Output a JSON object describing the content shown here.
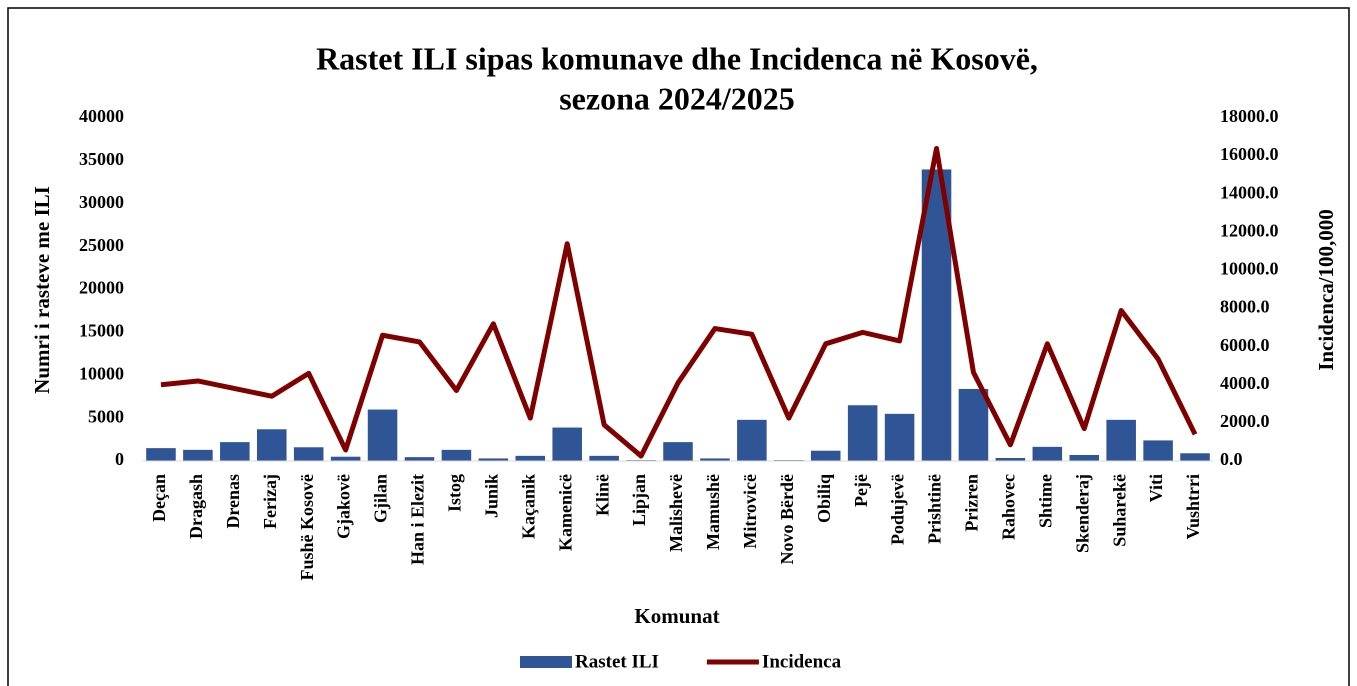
{
  "chart_data": {
    "type": "bar_line",
    "title": [
      "Rastet ILI sipas komunave dhe Incidenca në Kosovë,",
      "sezona 2024/2025"
    ],
    "x_label": "Komunat",
    "y_label": "Numri i rasteve me ILI",
    "y2_label": "Incidenca/100,000",
    "categories": [
      "Deçan",
      "Dragash",
      "Drenas",
      "Ferizaj",
      "Fushë Kosovë",
      "Gjakovë",
      "Gjilan",
      "Han i Elezit",
      "Istog",
      "Junik",
      "Kaçanik",
      "Kamenicë",
      "Klinë",
      "Lipjan",
      "Malishevë",
      "Mamushë",
      "Mitrovicë",
      "Novo Bërdë",
      "Obiliq",
      "Pejë",
      "Podujevë",
      "Prishtinë",
      "Prizren",
      "Rahovec",
      "Shtime",
      "Skenderaj",
      "Suharekë",
      "Viti",
      "Vushtrri"
    ],
    "series": [
      {
        "name": "Rastet ILI",
        "type": "bar",
        "color": "#2f5597",
        "values": [
          1500,
          1300,
          2200,
          3700,
          1600,
          500,
          6000,
          450,
          1300,
          300,
          600,
          3900,
          600,
          100,
          2200,
          300,
          4800,
          100,
          1200,
          6500,
          5500,
          34000,
          8400,
          350,
          1650,
          700,
          4800,
          2400,
          900
        ]
      },
      {
        "name": "Incidenca",
        "type": "line",
        "axis": "y2",
        "color": "#800000",
        "values": [
          4000,
          4200,
          3800,
          3400,
          4600,
          580,
          6600,
          6250,
          3700,
          7200,
          2250,
          11400,
          1900,
          260,
          4100,
          6950,
          6650,
          2250,
          6150,
          6750,
          6300,
          16400,
          4650,
          850,
          6150,
          1700,
          7900,
          5350,
          1400
        ]
      }
    ],
    "ylim": [
      0,
      40000
    ],
    "yticks": [
      0,
      5000,
      10000,
      15000,
      20000,
      25000,
      30000,
      35000,
      40000
    ],
    "y2lim": [
      0,
      18000
    ],
    "y2ticks": [
      {
        "value": 0,
        "label": "0.0"
      },
      {
        "value": 2000,
        "label": "2000.0"
      },
      {
        "value": 4000,
        "label": "4000.0"
      },
      {
        "value": 6000,
        "label": "6000.0"
      },
      {
        "value": 8000,
        "label": "8000.0"
      },
      {
        "value": 10000,
        "label": "10000.0"
      },
      {
        "value": 12000,
        "label": "12000.0"
      },
      {
        "value": 14000,
        "label": "14000.0"
      },
      {
        "value": 16000,
        "label": "16000.0"
      },
      {
        "value": 18000,
        "label": "18000.0"
      }
    ],
    "legend": "bottom"
  }
}
